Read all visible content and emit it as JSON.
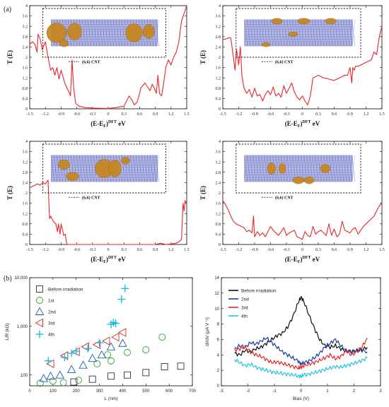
{
  "labels": {
    "panel_a": "(a)",
    "panel_b": "(b)"
  },
  "chart_data": [
    {
      "id": "t1",
      "type": "line",
      "xlabel": "(E-E",
      "xlabel_sub": "F",
      "xlabel_sup": "DFT",
      "xlabel_unit": "eV",
      "ylabel": "T (E)",
      "legend": "(6,6) CNT",
      "xlim": [
        -1.5,
        1.5
      ],
      "ylim": [
        0,
        4
      ],
      "xticks": [
        "-1.5",
        "-1.2",
        "-0.9",
        "-0.6",
        "-0.3",
        "0",
        "0.3",
        "0.6",
        "0.9",
        "1.2",
        "1.5"
      ],
      "yticks": [
        "0",
        "0.4",
        "0.8",
        "1.2",
        "1.6",
        "2",
        "2.4",
        "2.8",
        "3.2",
        "3.6",
        "4"
      ],
      "series": [
        {
          "color": "#e8262a",
          "x": [
            -1.5,
            -1.45,
            -1.4,
            -1.36,
            -1.34,
            -1.3,
            -1.26,
            -1.2,
            -1.16,
            -1.1,
            -1.06,
            -1.02,
            -0.98,
            -0.94,
            -0.9,
            -0.86,
            -0.83,
            -0.8,
            -0.76,
            -0.72,
            -0.69,
            -0.66,
            -0.62,
            -0.55,
            -0.45,
            -0.3,
            -0.15,
            0,
            0.15,
            0.3,
            0.35,
            0.4,
            0.45,
            0.5,
            0.55,
            0.6,
            0.62,
            0.66,
            0.7,
            0.75,
            0.8,
            0.84,
            0.88,
            0.92,
            0.95,
            0.98,
            1.02,
            1.06,
            1.1,
            1.15,
            1.2,
            1.25,
            1.3,
            1.35,
            1.4,
            1.45,
            1.5
          ],
          "y": [
            2.5,
            2.6,
            2.5,
            2.2,
            2.9,
            2.7,
            2.3,
            2.6,
            2.1,
            1.5,
            1.6,
            1.3,
            1.6,
            1.15,
            1.5,
            1.2,
            1.0,
            0.85,
            0.7,
            0.5,
            1.9,
            0.8,
            0.2,
            0.1,
            0.05,
            0.03,
            0.02,
            0.01,
            0.05,
            0.1,
            0.3,
            0.5,
            0.35,
            0.15,
            0.25,
            0.6,
            0.8,
            0.9,
            1.0,
            0.85,
            0.7,
            0.95,
            0.8,
            0.6,
            1.3,
            0.6,
            0.5,
            1.0,
            1.6,
            1.9,
            1.7,
            2.0,
            2.2,
            2.6,
            3.4,
            3.7,
            4.0
          ]
        }
      ]
    },
    {
      "id": "t2",
      "type": "line",
      "xlabel": "(E-E",
      "xlabel_sub": "F",
      "xlabel_sup": "DFT",
      "xlabel_unit": "eV",
      "ylabel": "T (E)",
      "legend": "(6,6) CNT",
      "xlim": [
        -1.5,
        1.5
      ],
      "ylim": [
        0,
        4
      ],
      "xticks": [
        "-1.5",
        "-1.2",
        "-0.9",
        "-0.6",
        "-0.3",
        "0",
        "0.3",
        "0.6",
        "0.9",
        "1.2",
        "1.5"
      ],
      "yticks": [
        "0",
        "0.4",
        "0.8",
        "1.2",
        "1.6",
        "2",
        "2.4",
        "2.8",
        "3.2",
        "3.6",
        "4"
      ],
      "series": [
        {
          "color": "#e8262a",
          "x": [
            -1.5,
            -1.45,
            -1.4,
            -1.35,
            -1.3,
            -1.27,
            -1.24,
            -1.2,
            -1.17,
            -1.14,
            -1.1,
            -1.05,
            -1.0,
            -0.95,
            -0.9,
            -0.85,
            -0.8,
            -0.75,
            -0.7,
            -0.65,
            -0.6,
            -0.55,
            -0.5,
            -0.45,
            -0.4,
            -0.35,
            -0.3,
            -0.25,
            -0.2,
            -0.15,
            -0.1,
            -0.05,
            0,
            0.05,
            0.1,
            0.15,
            0.2,
            0.3,
            0.4,
            0.5,
            0.6,
            0.7,
            0.8,
            0.85,
            0.9,
            0.93,
            0.95,
            0.98,
            1.0,
            1.05,
            1.1,
            1.2,
            1.3,
            1.35,
            1.4,
            1.45,
            1.5
          ],
          "y": [
            2.7,
            2.7,
            2.75,
            2.75,
            2.0,
            1.5,
            2.3,
            1.7,
            2.4,
            1.3,
            0.8,
            0.6,
            0.75,
            0.45,
            0.8,
            0.5,
            0.55,
            0.3,
            0.55,
            0.7,
            0.55,
            0.85,
            0.5,
            0.6,
            0.45,
            0.9,
            0.6,
            0.8,
            1.0,
            0.65,
            0.45,
            0.35,
            0.5,
            0.3,
            0.15,
            0.5,
            1.2,
            1.3,
            1.2,
            1.15,
            1.1,
            1.2,
            1.3,
            1.3,
            1.6,
            1.0,
            1.6,
            1.5,
            1.65,
            1.65,
            1.7,
            1.8,
            1.9,
            2.2,
            2.1,
            2.8,
            3.2
          ]
        }
      ]
    },
    {
      "id": "t3",
      "type": "line",
      "xlabel": "(E-E",
      "xlabel_sub": "F",
      "xlabel_sup": "DFT",
      "xlabel_unit": "eV",
      "ylabel": "T (E)",
      "legend": "(6,6) CNT",
      "xlim": [
        -1.5,
        1.5
      ],
      "ylim": [
        0,
        4
      ],
      "xticks": [
        "-1.5",
        "-1.2",
        "-0.9",
        "-0.6",
        "-0.3",
        "0",
        "0.3",
        "0.6",
        "0.9",
        "1.2",
        "1.5"
      ],
      "yticks": [
        "0",
        "0.4",
        "0.8",
        "1.2",
        "1.6",
        "2",
        "2.4",
        "2.8",
        "3.2",
        "3.6",
        "4"
      ],
      "series": [
        {
          "color": "#e8262a",
          "x": [
            -1.5,
            -1.45,
            -1.4,
            -1.35,
            -1.3,
            -1.25,
            -1.2,
            -1.15,
            -1.12,
            -1.1,
            -1.05,
            -1.0,
            -0.97,
            -0.95,
            -0.92,
            -0.9,
            -0.85,
            -0.82,
            -0.8,
            -0.78,
            -0.5,
            0,
            0.5,
            0.9,
            1.0,
            1.1,
            1.2,
            1.3,
            1.35,
            1.4,
            1.43,
            1.45,
            1.47,
            1.5
          ],
          "y": [
            2.2,
            2.25,
            2.3,
            2.35,
            2.3,
            2.4,
            2.35,
            2.5,
            1.0,
            1.1,
            0.9,
            0.8,
            0.5,
            0.8,
            0.4,
            0.8,
            0.35,
            0.4,
            0.1,
            0.0,
            0.0,
            0.0,
            0.0,
            0.0,
            0.05,
            0.0,
            0.02,
            0.05,
            0.1,
            0.2,
            1.6,
            1.3,
            1.7,
            1.6
          ]
        }
      ]
    },
    {
      "id": "t4",
      "type": "line",
      "xlabel": "(E-E",
      "xlabel_sub": "F",
      "xlabel_sup": "DFT",
      "xlabel_unit": "eV",
      "ylabel": "T (E)",
      "legend": "(6,6) CNT",
      "xlim": [
        -1.5,
        1.5
      ],
      "ylim": [
        0,
        4
      ],
      "xticks": [
        "-1.5",
        "-1.2",
        "-0.9",
        "-0.6",
        "-0.3",
        "0",
        "0.3",
        "0.6",
        "0.9",
        "1.2",
        "1.5"
      ],
      "yticks": [
        "0",
        "0.4",
        "0.8",
        "1.2",
        "1.6",
        "2",
        "2.4",
        "2.8",
        "3.2",
        "3.6",
        "4"
      ],
      "series": [
        {
          "color": "#e8262a",
          "x": [
            -1.5,
            -1.45,
            -1.4,
            -1.35,
            -1.3,
            -1.25,
            -1.2,
            -1.15,
            -1.1,
            -1.05,
            -1.0,
            -0.95,
            -0.92,
            -0.9,
            -0.85,
            -0.8,
            -0.75,
            -0.7,
            -0.65,
            -0.6,
            -0.55,
            -0.5,
            -0.45,
            -0.4,
            -0.35,
            -0.3,
            -0.25,
            -0.2,
            -0.15,
            -0.1,
            -0.05,
            0,
            0.05,
            0.1,
            0.15,
            0.2,
            0.25,
            0.3,
            0.35,
            0.4,
            0.45,
            0.5,
            0.55,
            0.6,
            0.65,
            0.7,
            0.75,
            0.8,
            0.85,
            0.9,
            0.95,
            1.0,
            1.05,
            1.1,
            1.15,
            1.2,
            1.25,
            1.3,
            1.35,
            1.4,
            1.45,
            1.5
          ],
          "y": [
            1.7,
            1.55,
            1.35,
            1.1,
            0.9,
            0.8,
            0.75,
            0.7,
            0.65,
            0.5,
            0.55,
            0.45,
            1.1,
            0.3,
            0.5,
            0.35,
            0.45,
            0.3,
            0.5,
            0.7,
            0.55,
            0.45,
            0.35,
            0.5,
            0.65,
            0.35,
            0.45,
            0.5,
            0.55,
            0.3,
            0.25,
            0.2,
            0.5,
            0.35,
            0.3,
            0.7,
            0.4,
            0.5,
            0.55,
            0.45,
            0.35,
            0.8,
            0.35,
            0.6,
            0.3,
            0.4,
            0.9,
            0.55,
            0.5,
            0.45,
            0.6,
            0.65,
            0.4,
            0.55,
            0.7,
            0.8,
            0.9,
            1.0,
            1.1,
            1.3,
            1.5,
            1.6
          ]
        }
      ]
    },
    {
      "id": "rl",
      "type": "scatter",
      "xlabel": "L",
      "xlabel_unit": "(nm)",
      "ylabel": "L/R (kΩ)",
      "ylog": true,
      "xlim": [
        0,
        700
      ],
      "ylim": [
        60,
        10000
      ],
      "xticks": [
        "0",
        "100",
        "200",
        "300",
        "400",
        "500",
        "600",
        "700"
      ],
      "yticks": [
        "100",
        "1,000",
        "10,000"
      ],
      "yticks_values": [
        100,
        1000,
        10000
      ],
      "series": [
        {
          "name": "Before irradiation",
          "marker": "square",
          "color": "#333333",
          "x": [
            190,
            270,
            350,
            420,
            500,
            580,
            650
          ],
          "y": [
            72,
            82,
            95,
            100,
            112,
            148,
            152
          ]
        },
        {
          "name": "1st",
          "marker": "circle",
          "color": "#2ca02c",
          "x": [
            45,
            100,
            145,
            210,
            290,
            335,
            350,
            420,
            500,
            570
          ],
          "y": [
            68,
            75,
            70,
            78,
            170,
            260,
            195,
            290,
            330,
            600
          ]
        },
        {
          "name": "2nd",
          "marker": "triangle-up",
          "color": "#1f5fa8",
          "x": [
            60,
            90,
            130,
            180,
            230,
            270,
            310,
            350,
            400
          ],
          "y": [
            85,
            95,
            100,
            130,
            160,
            220,
            260,
            380,
            450
          ]
        },
        {
          "name": "3rd",
          "marker": "triangle-left",
          "color": "#d62728",
          "x": [
            90,
            150,
            200,
            240,
            290,
            330,
            370,
            400
          ],
          "y": [
            170,
            250,
            300,
            380,
            420,
            500,
            600,
            750
          ]
        },
        {
          "name": "4th",
          "marker": "plus",
          "color": "#17b9d8",
          "x": [
            80,
            150,
            180,
            200,
            250,
            300,
            350,
            360,
            370,
            395,
            410
          ],
          "y": [
            195,
            230,
            280,
            310,
            350,
            460,
            1100,
            1200,
            1150,
            3600,
            6000
          ]
        }
      ]
    },
    {
      "id": "didv",
      "type": "line",
      "xlabel": "Bias (V)",
      "ylabel": "dI/dV (μA V⁻¹)",
      "xlim": [
        -3,
        3
      ],
      "ylim": [
        0,
        14
      ],
      "xticks": [
        "-3",
        "-2",
        "-1",
        "0",
        "1",
        "2",
        "3"
      ],
      "yticks": [
        "0",
        "2",
        "4",
        "6",
        "8",
        "10",
        "12",
        "14"
      ],
      "series": [
        {
          "name": "Before irradiation",
          "color": "#111111",
          "x": [
            -2.5,
            -2.3,
            -2.1,
            -1.9,
            -1.7,
            -1.5,
            -1.3,
            -1.1,
            -0.9,
            -0.7,
            -0.5,
            -0.3,
            -0.1,
            0,
            0.1,
            0.3,
            0.5,
            0.7,
            0.9,
            1.1,
            1.3,
            1.5,
            1.7,
            1.9,
            2.1,
            2.3,
            2.5
          ],
          "y": [
            4.2,
            4.0,
            4.6,
            4.4,
            4.8,
            5.0,
            5.5,
            6.0,
            6.5,
            6.8,
            7.6,
            9.0,
            10.8,
            11.5,
            11.0,
            9.2,
            7.5,
            6.0,
            5.2,
            5.0,
            5.2,
            4.8,
            4.5,
            4.4,
            4.6,
            4.7,
            5.0
          ]
        },
        {
          "name": "2nd",
          "color": "#1f3fa0",
          "x": [
            -2.5,
            -2.3,
            -2.1,
            -1.9,
            -1.7,
            -1.5,
            -1.3,
            -1.1,
            -0.9,
            -0.7,
            -0.5,
            -0.3,
            -0.1,
            0,
            0.1,
            0.3,
            0.5,
            0.7,
            0.9,
            1.1,
            1.3,
            1.5,
            1.7,
            1.9,
            2.1,
            2.3,
            2.5
          ],
          "y": [
            4.8,
            5.2,
            5.0,
            5.6,
            5.4,
            5.8,
            6.2,
            5.6,
            5.0,
            4.4,
            4.0,
            3.6,
            3.2,
            2.8,
            3.0,
            3.2,
            3.6,
            4.2,
            5.0,
            5.5,
            6.0,
            5.2,
            4.6,
            4.4,
            4.5,
            4.6,
            4.4
          ]
        },
        {
          "name": "3rd",
          "color": "#e8262a",
          "x": [
            -2.5,
            -2.3,
            -2.1,
            -1.9,
            -1.7,
            -1.5,
            -1.3,
            -1.1,
            -0.9,
            -0.7,
            -0.5,
            -0.3,
            -0.1,
            0,
            0.1,
            0.3,
            0.5,
            0.7,
            0.9,
            1.1,
            1.3,
            1.5,
            1.7,
            1.9,
            2.1,
            2.3,
            2.5
          ],
          "y": [
            4.6,
            4.8,
            5.0,
            4.4,
            4.0,
            3.8,
            3.4,
            3.0,
            3.1,
            2.9,
            2.7,
            2.5,
            2.3,
            2.4,
            2.6,
            2.8,
            3.0,
            3.3,
            3.6,
            4.0,
            3.5,
            3.8,
            4.5,
            4.0,
            4.4,
            5.0,
            6.2
          ]
        },
        {
          "name": "4th",
          "color": "#22c4e8",
          "x": [
            -2.5,
            -2.3,
            -2.1,
            -1.9,
            -1.7,
            -1.5,
            -1.3,
            -1.1,
            -0.9,
            -0.7,
            -0.5,
            -0.3,
            -0.1,
            0,
            0.1,
            0.3,
            0.5,
            0.7,
            0.9,
            1.1,
            1.3,
            1.5,
            1.7,
            1.9,
            2.1,
            2.3,
            2.5
          ],
          "y": [
            3.4,
            3.0,
            2.6,
            2.8,
            2.4,
            2.2,
            2.0,
            1.8,
            1.7,
            1.6,
            1.5,
            1.4,
            1.3,
            1.2,
            1.4,
            1.5,
            1.7,
            1.9,
            2.1,
            2.3,
            2.5,
            2.4,
            2.6,
            2.8,
            3.0,
            3.3,
            3.6
          ]
        }
      ]
    }
  ]
}
